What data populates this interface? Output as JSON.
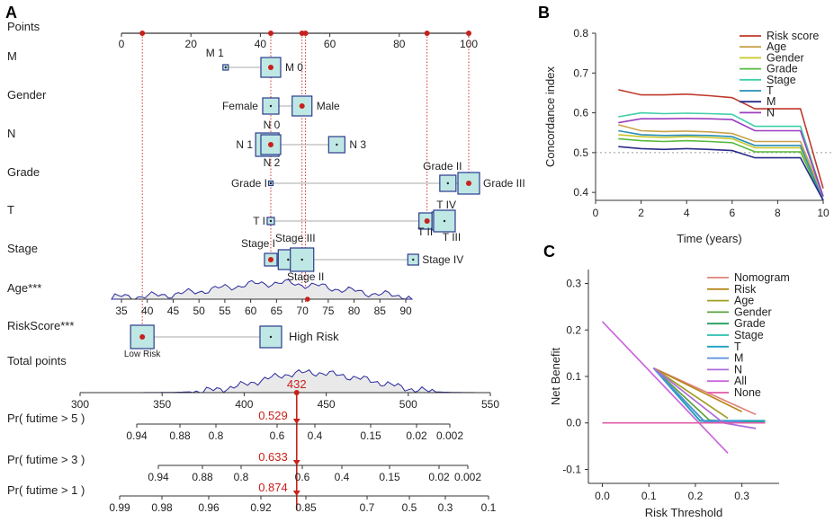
{
  "panel_labels": {
    "a": "A",
    "b": "B",
    "c": "C"
  },
  "chart_data": [
    {
      "type": "nomogram",
      "panel": "A",
      "points_axis": {
        "label": "Points",
        "min": 0,
        "max": 100,
        "ticks": [
          0,
          20,
          40,
          60,
          80,
          100
        ],
        "selected": [
          6,
          43,
          52,
          53,
          88,
          100
        ]
      },
      "variables": [
        {
          "label": "M",
          "levels": [
            {
              "name": "M 1",
              "points": 30
            },
            {
              "name": "M 0",
              "points": 43
            }
          ]
        },
        {
          "label": "Gender",
          "levels": [
            {
              "name": "Female",
              "points": 43
            },
            {
              "name": "Male",
              "points": 52
            }
          ]
        },
        {
          "label": "N",
          "levels": [
            {
              "name": "N 1",
              "points": 42
            },
            {
              "name": "N 0",
              "points": 43
            },
            {
              "name": "N 2",
              "points": 43
            },
            {
              "name": "N 3",
              "points": 62
            }
          ]
        },
        {
          "label": "Grade",
          "levels": [
            {
              "name": "Grade I",
              "points": 43
            },
            {
              "name": "Grade II",
              "points": 94
            },
            {
              "name": "Grade III",
              "points": 100
            }
          ]
        },
        {
          "label": "T",
          "levels": [
            {
              "name": "T I",
              "points": 43
            },
            {
              "name": "T II",
              "points": 88
            },
            {
              "name": "T IV",
              "points": 92
            },
            {
              "name": "T III",
              "points": 93
            }
          ]
        },
        {
          "label": "Stage",
          "levels": [
            {
              "name": "Stage I",
              "points": 43
            },
            {
              "name": "Stage III",
              "points": 48
            },
            {
              "name": "Stage II",
              "points": 52
            },
            {
              "name": "Stage IV",
              "points": 84
            }
          ]
        }
      ],
      "age": {
        "label": "Age***",
        "min": 35,
        "max": 90,
        "ticks": [
          35,
          40,
          45,
          50,
          55,
          60,
          65,
          70,
          75,
          80,
          85,
          90
        ],
        "selected": 71
      },
      "risk_score": {
        "label": "RiskScore***",
        "low": "Low Risk",
        "high": "High Risk"
      },
      "total_points": {
        "label": "Total points",
        "min": 300,
        "max": 550,
        "ticks": [
          300,
          350,
          400,
          450,
          500,
          550
        ],
        "selected": 432
      },
      "survival": [
        {
          "label": "Pr( futime > 5 )",
          "value": "0.529",
          "ticks": [
            "0.94",
            "0.88",
            "0.8",
            "0.6",
            "0.4",
            "0.15",
            "0.02",
            "0.002"
          ]
        },
        {
          "label": "Pr( futime > 3 )",
          "value": "0.633",
          "ticks": [
            "0.94",
            "0.88",
            "0.8",
            "0.6",
            "0.4",
            "0.15",
            "0.02",
            "0.002"
          ]
        },
        {
          "label": "Pr( futime > 1 )",
          "value": "0.874",
          "ticks": [
            "0.99",
            "0.98",
            "0.96",
            "0.92",
            "0.85",
            "0.7",
            "0.5",
            "0.3",
            "0.1"
          ]
        }
      ]
    },
    {
      "type": "line",
      "panel": "B",
      "xlabel": "Time (years)",
      "ylabel": "Concordance index",
      "xlim": [
        0,
        10
      ],
      "ylim": [
        0.38,
        0.8
      ],
      "xticks": [
        0,
        2,
        4,
        6,
        8,
        10
      ],
      "yticks": [
        0.4,
        0.5,
        0.6,
        0.7,
        0.8
      ],
      "reference_line": 0.5,
      "x": [
        1,
        2,
        3,
        4,
        5,
        6,
        7,
        8,
        9,
        10
      ],
      "series": [
        {
          "name": "Risk score",
          "color": "#c0392b",
          "values": [
            0.658,
            0.645,
            0.645,
            0.647,
            0.643,
            0.638,
            0.61,
            0.61,
            0.61,
            0.41
          ]
        },
        {
          "name": "Age",
          "color": "#c9a24a",
          "values": [
            0.57,
            0.555,
            0.553,
            0.554,
            0.552,
            0.548,
            0.528,
            0.528,
            0.528,
            0.39
          ]
        },
        {
          "name": "Gender",
          "color": "#c7c727",
          "values": [
            0.545,
            0.54,
            0.538,
            0.54,
            0.538,
            0.535,
            0.512,
            0.512,
            0.512,
            0.38
          ]
        },
        {
          "name": "Grade",
          "color": "#55b93c",
          "values": [
            0.535,
            0.53,
            0.528,
            0.53,
            0.528,
            0.525,
            0.502,
            0.502,
            0.502,
            0.38
          ]
        },
        {
          "name": "Stage",
          "color": "#3ecfa8",
          "values": [
            0.59,
            0.6,
            0.598,
            0.599,
            0.598,
            0.596,
            0.566,
            0.566,
            0.566,
            0.39
          ]
        },
        {
          "name": "T",
          "color": "#2a8fb8",
          "values": [
            0.555,
            0.545,
            0.543,
            0.544,
            0.543,
            0.54,
            0.518,
            0.518,
            0.518,
            0.38
          ]
        },
        {
          "name": "M",
          "color": "#2b2b8c",
          "values": [
            0.515,
            0.51,
            0.508,
            0.51,
            0.508,
            0.505,
            0.487,
            0.487,
            0.487,
            0.38
          ]
        },
        {
          "name": "N",
          "color": "#9b3dbf",
          "values": [
            0.575,
            0.585,
            0.585,
            0.586,
            0.585,
            0.583,
            0.555,
            0.555,
            0.555,
            0.39
          ]
        }
      ]
    },
    {
      "type": "line",
      "panel": "C",
      "xlabel": "Risk Threshold",
      "ylabel": "Net Benefit",
      "xlim": [
        -0.03,
        0.38
      ],
      "ylim": [
        -0.13,
        0.33
      ],
      "xticks": [
        "0.0",
        "0.1",
        "0.2",
        "0.3"
      ],
      "yticks": [
        "-0.1",
        "0.0",
        "0.1",
        "0.2",
        "0.3"
      ],
      "series": [
        {
          "name": "Nomogram",
          "color": "#e0837a",
          "x": [
            0.11,
            0.33
          ],
          "y": [
            0.118,
            0.018
          ]
        },
        {
          "name": "Risk",
          "color": "#b8871c",
          "x": [
            0.11,
            0.3
          ],
          "y": [
            0.118,
            0.024
          ]
        },
        {
          "name": "Age",
          "color": "#9e9e22",
          "x": [
            0.11,
            0.27
          ],
          "y": [
            0.118,
            0.01
          ]
        },
        {
          "name": "Gender",
          "color": "#5aa33a",
          "x": [
            0.11,
            0.23,
            0.26
          ],
          "y": [
            0.118,
            0.006,
            0.004
          ]
        },
        {
          "name": "Grade",
          "color": "#1e9e5c",
          "x": [
            0.11,
            0.22,
            0.35
          ],
          "y": [
            0.118,
            0.002,
            0.002
          ]
        },
        {
          "name": "Stage",
          "color": "#2bbfae",
          "x": [
            0.11,
            0.21,
            0.35
          ],
          "y": [
            0.118,
            0.004,
            0.004
          ]
        },
        {
          "name": "T",
          "color": "#1e9fc4",
          "x": [
            0.11,
            0.21,
            0.35
          ],
          "y": [
            0.118,
            0.005,
            0.005
          ]
        },
        {
          "name": "M",
          "color": "#5a8fe0",
          "x": [
            0.11,
            0.22,
            0.3
          ],
          "y": [
            0.118,
            0.003,
            0.003
          ]
        },
        {
          "name": "N",
          "color": "#b06bdc",
          "x": [
            0.11,
            0.26,
            0.33
          ],
          "y": [
            0.118,
            0.0,
            -0.012
          ]
        },
        {
          "name": "All",
          "color": "#cc66dd",
          "x": [
            0.0,
            0.27
          ],
          "y": [
            0.218,
            -0.065
          ]
        },
        {
          "name": "None",
          "color": "#e05aa8",
          "x": [
            0.0,
            0.35
          ],
          "y": [
            0.0,
            0.0
          ]
        }
      ]
    }
  ]
}
